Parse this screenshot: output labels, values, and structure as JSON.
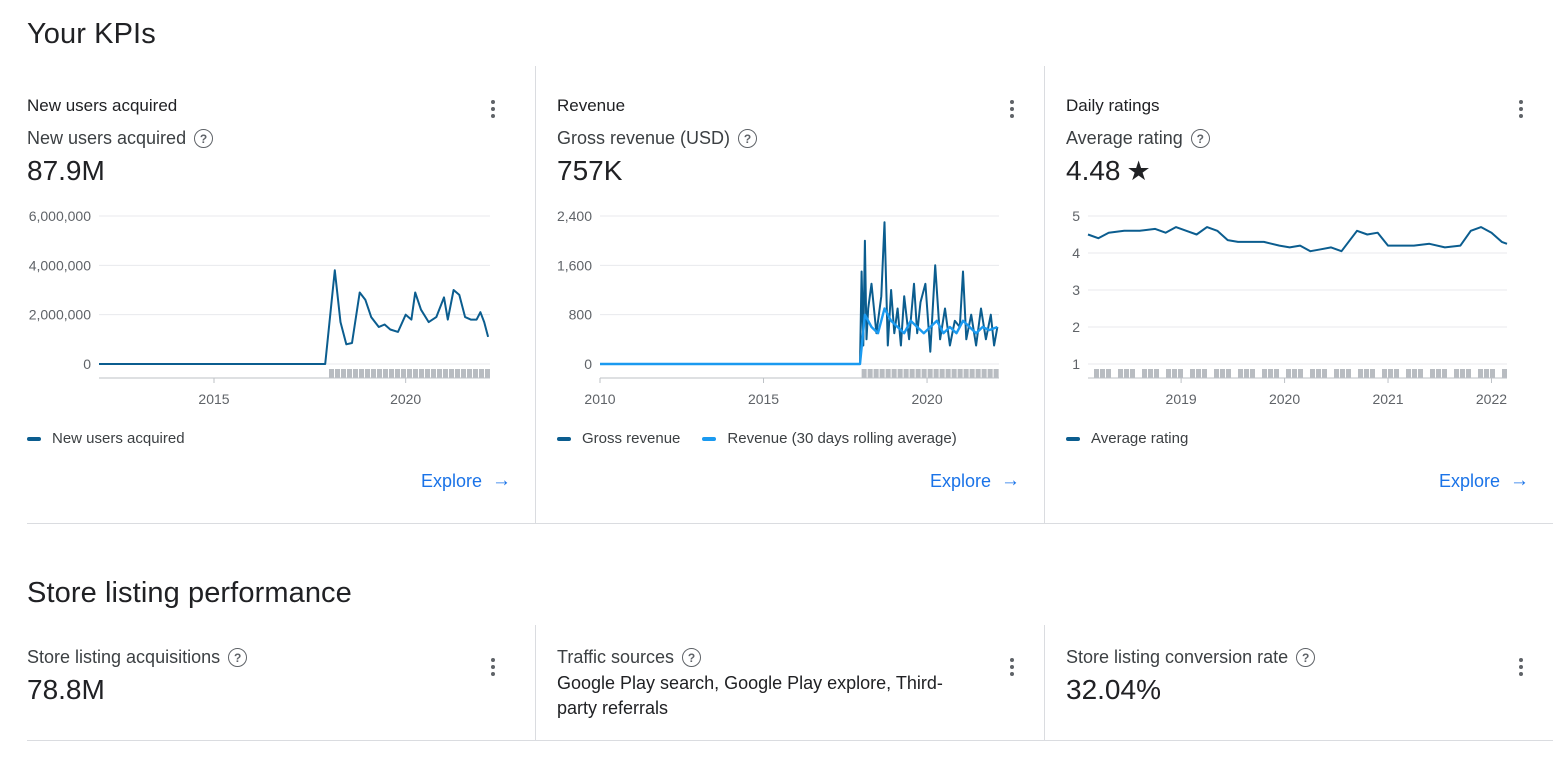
{
  "page": {
    "kpi_section_title": "Your KPIs",
    "store_section_title": "Store listing performance"
  },
  "colors": {
    "dark_series": "#0b5d8f",
    "light_series": "#1a9af0",
    "link": "#1a73e8",
    "border": "#dadce0"
  },
  "icons": {
    "help": "help-circle-icon",
    "more": "more-vert-icon",
    "explore_arrow": "arrow-right-icon",
    "rating": "star-icon"
  },
  "kpi_cards": [
    {
      "header": "New users acquired",
      "metric_label": "New users acquired",
      "metric_value": "87.9M",
      "legend": [
        "New users acquired"
      ],
      "explore_label": "Explore",
      "arrow": "→"
    },
    {
      "header": "Revenue",
      "metric_label": "Gross revenue (USD)",
      "metric_value": "757K",
      "legend": [
        "Gross revenue",
        "Revenue (30 days rolling average)"
      ],
      "explore_label": "Explore",
      "arrow": "→"
    },
    {
      "header": "Daily ratings",
      "metric_label": "Average rating",
      "metric_value": "4.48",
      "star": "★",
      "legend": [
        "Average rating"
      ],
      "explore_label": "Explore",
      "arrow": "→"
    }
  ],
  "store_cards": [
    {
      "label": "Store listing acquisitions",
      "value": "78.8M"
    },
    {
      "label": "Traffic sources",
      "value": "Google Play search, Google Play explore, Third-party referrals"
    },
    {
      "label": "Store listing conversion rate",
      "value": "32.04%"
    }
  ],
  "chart_data": [
    {
      "type": "line",
      "title": "",
      "xlabel": "",
      "ylabel": "",
      "x_ticks": [
        "2015",
        "2020"
      ],
      "y_ticks": [
        "0",
        "2,000,000",
        "4,000,000",
        "6,000,000"
      ],
      "xlim": [
        2012.0,
        2022.2
      ],
      "ylim": [
        0,
        6000000
      ],
      "grid": true,
      "legend_position": "bottom-left",
      "series": [
        {
          "name": "New users acquired",
          "x": [
            2012.0,
            2017.9,
            2018.15,
            2018.3,
            2018.45,
            2018.6,
            2018.8,
            2018.95,
            2019.1,
            2019.3,
            2019.45,
            2019.6,
            2019.8,
            2020.0,
            2020.15,
            2020.25,
            2020.4,
            2020.6,
            2020.8,
            2021.0,
            2021.1,
            2021.25,
            2021.4,
            2021.55,
            2021.7,
            2021.85,
            2021.95,
            2022.05,
            2022.15
          ],
          "y": [
            0,
            0,
            3800000,
            1700000,
            800000,
            850000,
            2900000,
            2600000,
            1900000,
            1500000,
            1600000,
            1400000,
            1300000,
            2000000,
            1800000,
            2900000,
            2200000,
            1700000,
            1900000,
            2700000,
            1800000,
            3000000,
            2800000,
            1900000,
            1800000,
            1800000,
            2100000,
            1700000,
            1100000
          ]
        }
      ]
    },
    {
      "type": "line",
      "title": "",
      "xlabel": "",
      "ylabel": "",
      "x_ticks": [
        "2010",
        "2015",
        "2020"
      ],
      "y_ticks": [
        "0",
        "800",
        "1,600",
        "2,400"
      ],
      "xlim": [
        2010.0,
        2022.2
      ],
      "ylim": [
        0,
        2400
      ],
      "grid": true,
      "legend_position": "bottom-left",
      "series": [
        {
          "name": "Gross revenue",
          "x": [
            2010.0,
            2017.95,
            2018.0,
            2018.05,
            2018.1,
            2018.15,
            2018.2,
            2018.3,
            2018.45,
            2018.6,
            2018.7,
            2018.8,
            2018.9,
            2019.0,
            2019.1,
            2019.2,
            2019.3,
            2019.45,
            2019.6,
            2019.7,
            2019.8,
            2019.95,
            2020.1,
            2020.25,
            2020.4,
            2020.55,
            2020.7,
            2020.85,
            2021.0,
            2021.1,
            2021.2,
            2021.35,
            2021.5,
            2021.65,
            2021.8,
            2021.95,
            2022.05,
            2022.15
          ],
          "y": [
            0,
            0,
            1500,
            300,
            2000,
            400,
            900,
            1300,
            500,
            1100,
            2300,
            300,
            1200,
            500,
            900,
            300,
            1100,
            400,
            1300,
            500,
            1000,
            1300,
            200,
            1600,
            400,
            900,
            300,
            700,
            600,
            1500,
            400,
            800,
            300,
            900,
            400,
            800,
            300,
            600
          ]
        },
        {
          "name": "Revenue (30 days rolling average)",
          "x": [
            2010.0,
            2017.95,
            2018.1,
            2018.3,
            2018.5,
            2018.7,
            2018.9,
            2019.1,
            2019.3,
            2019.5,
            2019.7,
            2019.9,
            2020.1,
            2020.3,
            2020.5,
            2020.7,
            2020.9,
            2021.1,
            2021.3,
            2021.5,
            2021.7,
            2021.9,
            2022.15
          ],
          "y": [
            0,
            0,
            800,
            600,
            500,
            900,
            700,
            600,
            500,
            700,
            600,
            500,
            600,
            700,
            500,
            600,
            500,
            700,
            600,
            500,
            600,
            550,
            600
          ]
        }
      ]
    },
    {
      "type": "line",
      "title": "",
      "xlabel": "",
      "ylabel": "",
      "x_ticks": [
        "2019",
        "2020",
        "2021",
        "2022"
      ],
      "y_ticks": [
        "1",
        "2",
        "3",
        "4",
        "5"
      ],
      "xlim": [
        2018.1,
        2022.15
      ],
      "ylim": [
        1,
        5
      ],
      "grid": true,
      "legend_position": "bottom-left",
      "series": [
        {
          "name": "Average rating",
          "x": [
            2018.1,
            2018.2,
            2018.3,
            2018.45,
            2018.6,
            2018.75,
            2018.85,
            2018.95,
            2019.05,
            2019.15,
            2019.25,
            2019.35,
            2019.45,
            2019.55,
            2019.65,
            2019.8,
            2019.95,
            2020.05,
            2020.15,
            2020.25,
            2020.35,
            2020.45,
            2020.55,
            2020.7,
            2020.8,
            2020.9,
            2021.0,
            2021.1,
            2021.25,
            2021.4,
            2021.55,
            2021.7,
            2021.8,
            2021.9,
            2022.0,
            2022.1,
            2022.15
          ],
          "y": [
            4.5,
            4.4,
            4.55,
            4.6,
            4.6,
            4.65,
            4.55,
            4.7,
            4.6,
            4.5,
            4.7,
            4.6,
            4.35,
            4.3,
            4.3,
            4.3,
            4.2,
            4.15,
            4.2,
            4.05,
            4.1,
            4.15,
            4.05,
            4.6,
            4.5,
            4.55,
            4.2,
            4.2,
            4.2,
            4.25,
            4.15,
            4.2,
            4.6,
            4.7,
            4.55,
            4.3,
            4.25
          ]
        }
      ]
    }
  ]
}
